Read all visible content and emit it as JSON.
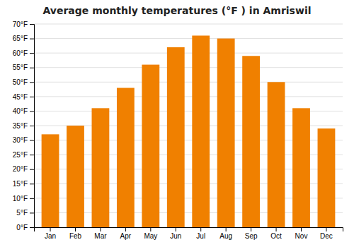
{
  "chart_data": {
    "type": "bar",
    "title": "Average monthly temperatures (°F ) in Amriswil",
    "categories": [
      "Jan",
      "Feb",
      "Mar",
      "Apr",
      "May",
      "Jun",
      "Jul",
      "Aug",
      "Sep",
      "Oct",
      "Nov",
      "Dec"
    ],
    "values": [
      32,
      35,
      41,
      48,
      56,
      62,
      66,
      65,
      59,
      50,
      41,
      34
    ],
    "color": "#F08000",
    "ylim": [
      0,
      70
    ],
    "yticks": [
      {
        "value": 0,
        "label": "0°F"
      },
      {
        "value": 5,
        "label": "5°F"
      },
      {
        "value": 10,
        "label": "10°F"
      },
      {
        "value": 15,
        "label": "15°F"
      },
      {
        "value": 20,
        "label": "20°F"
      },
      {
        "value": 25,
        "label": "25°F"
      },
      {
        "value": 30,
        "label": "30°F"
      },
      {
        "value": 35,
        "label": "35°F"
      },
      {
        "value": 40,
        "label": "40°F"
      },
      {
        "value": 45,
        "label": "45°F"
      },
      {
        "value": 50,
        "label": "50°F"
      },
      {
        "value": 55,
        "label": "55°F"
      },
      {
        "value": 60,
        "label": "60°F"
      },
      {
        "value": 65,
        "label": "65°F"
      },
      {
        "value": 70,
        "label": "70°F"
      }
    ],
    "grid": true
  }
}
